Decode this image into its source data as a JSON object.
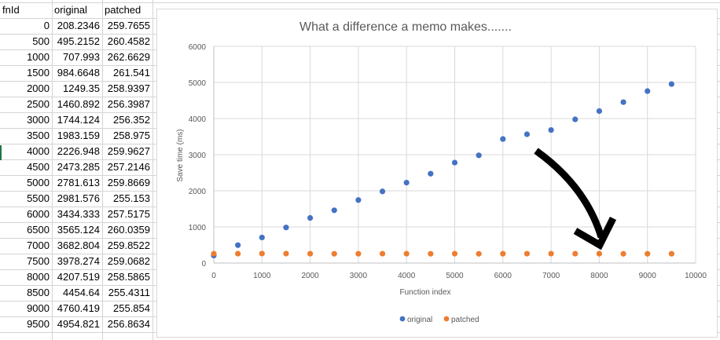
{
  "sheet": {
    "headers": [
      "fnId",
      "original",
      "patched"
    ],
    "rows": [
      [
        "0",
        "208.2346",
        "259.7655"
      ],
      [
        "500",
        "495.2152",
        "260.4582"
      ],
      [
        "1000",
        "707.993",
        "262.6629"
      ],
      [
        "1500",
        "984.6648",
        "261.541"
      ],
      [
        "2000",
        "1249.35",
        "258.9397"
      ],
      [
        "2500",
        "1460.892",
        "256.3987"
      ],
      [
        "3000",
        "1744.124",
        "256.352"
      ],
      [
        "3500",
        "1983.159",
        "258.975"
      ],
      [
        "4000",
        "2226.948",
        "259.9627"
      ],
      [
        "4500",
        "2473.285",
        "257.2146"
      ],
      [
        "5000",
        "2781.613",
        "259.8669"
      ],
      [
        "5500",
        "2981.576",
        "255.153"
      ],
      [
        "6000",
        "3434.333",
        "257.5175"
      ],
      [
        "6500",
        "3565.124",
        "260.0359"
      ],
      [
        "7000",
        "3682.804",
        "259.8522"
      ],
      [
        "7500",
        "3978.274",
        "259.0682"
      ],
      [
        "8000",
        "4207.519",
        "258.5865"
      ],
      [
        "8500",
        "4454.64",
        "255.4311"
      ],
      [
        "9000",
        "4760.419",
        "255.854"
      ],
      [
        "9500",
        "4954.821",
        "256.8634"
      ]
    ]
  },
  "chart_data": {
    "type": "scatter",
    "title": "What a difference a memo makes.......",
    "xlabel": "Function index",
    "ylabel": "Save time (ms)",
    "xlim": [
      0,
      10000
    ],
    "ylim": [
      0,
      6000
    ],
    "xticks": [
      0,
      1000,
      2000,
      3000,
      4000,
      5000,
      6000,
      7000,
      8000,
      9000,
      10000
    ],
    "yticks": [
      0,
      1000,
      2000,
      3000,
      4000,
      5000,
      6000
    ],
    "grid": true,
    "legend_position": "bottom",
    "x": [
      0,
      500,
      1000,
      1500,
      2000,
      2500,
      3000,
      3500,
      4000,
      4500,
      5000,
      5500,
      6000,
      6500,
      7000,
      7500,
      8000,
      8500,
      9000,
      9500
    ],
    "series": [
      {
        "name": "original",
        "color": "#4472C4",
        "values": [
          208.2346,
          495.2152,
          707.993,
          984.6648,
          1249.35,
          1460.892,
          1744.124,
          1983.159,
          2226.948,
          2473.285,
          2781.613,
          2981.576,
          3434.333,
          3565.124,
          3682.804,
          3978.274,
          4207.519,
          4454.64,
          4760.419,
          4954.821
        ]
      },
      {
        "name": "patched",
        "color": "#ED7D31",
        "values": [
          259.7655,
          260.4582,
          262.6629,
          261.541,
          258.9397,
          256.3987,
          256.352,
          258.975,
          259.9627,
          257.2146,
          259.8669,
          255.153,
          257.5175,
          260.0359,
          259.8522,
          259.0682,
          258.5865,
          255.4311,
          255.854,
          256.8634
        ]
      }
    ],
    "annotation": {
      "type": "arrow",
      "color": "#000000",
      "icon": "curved-arrow-down-icon"
    }
  }
}
